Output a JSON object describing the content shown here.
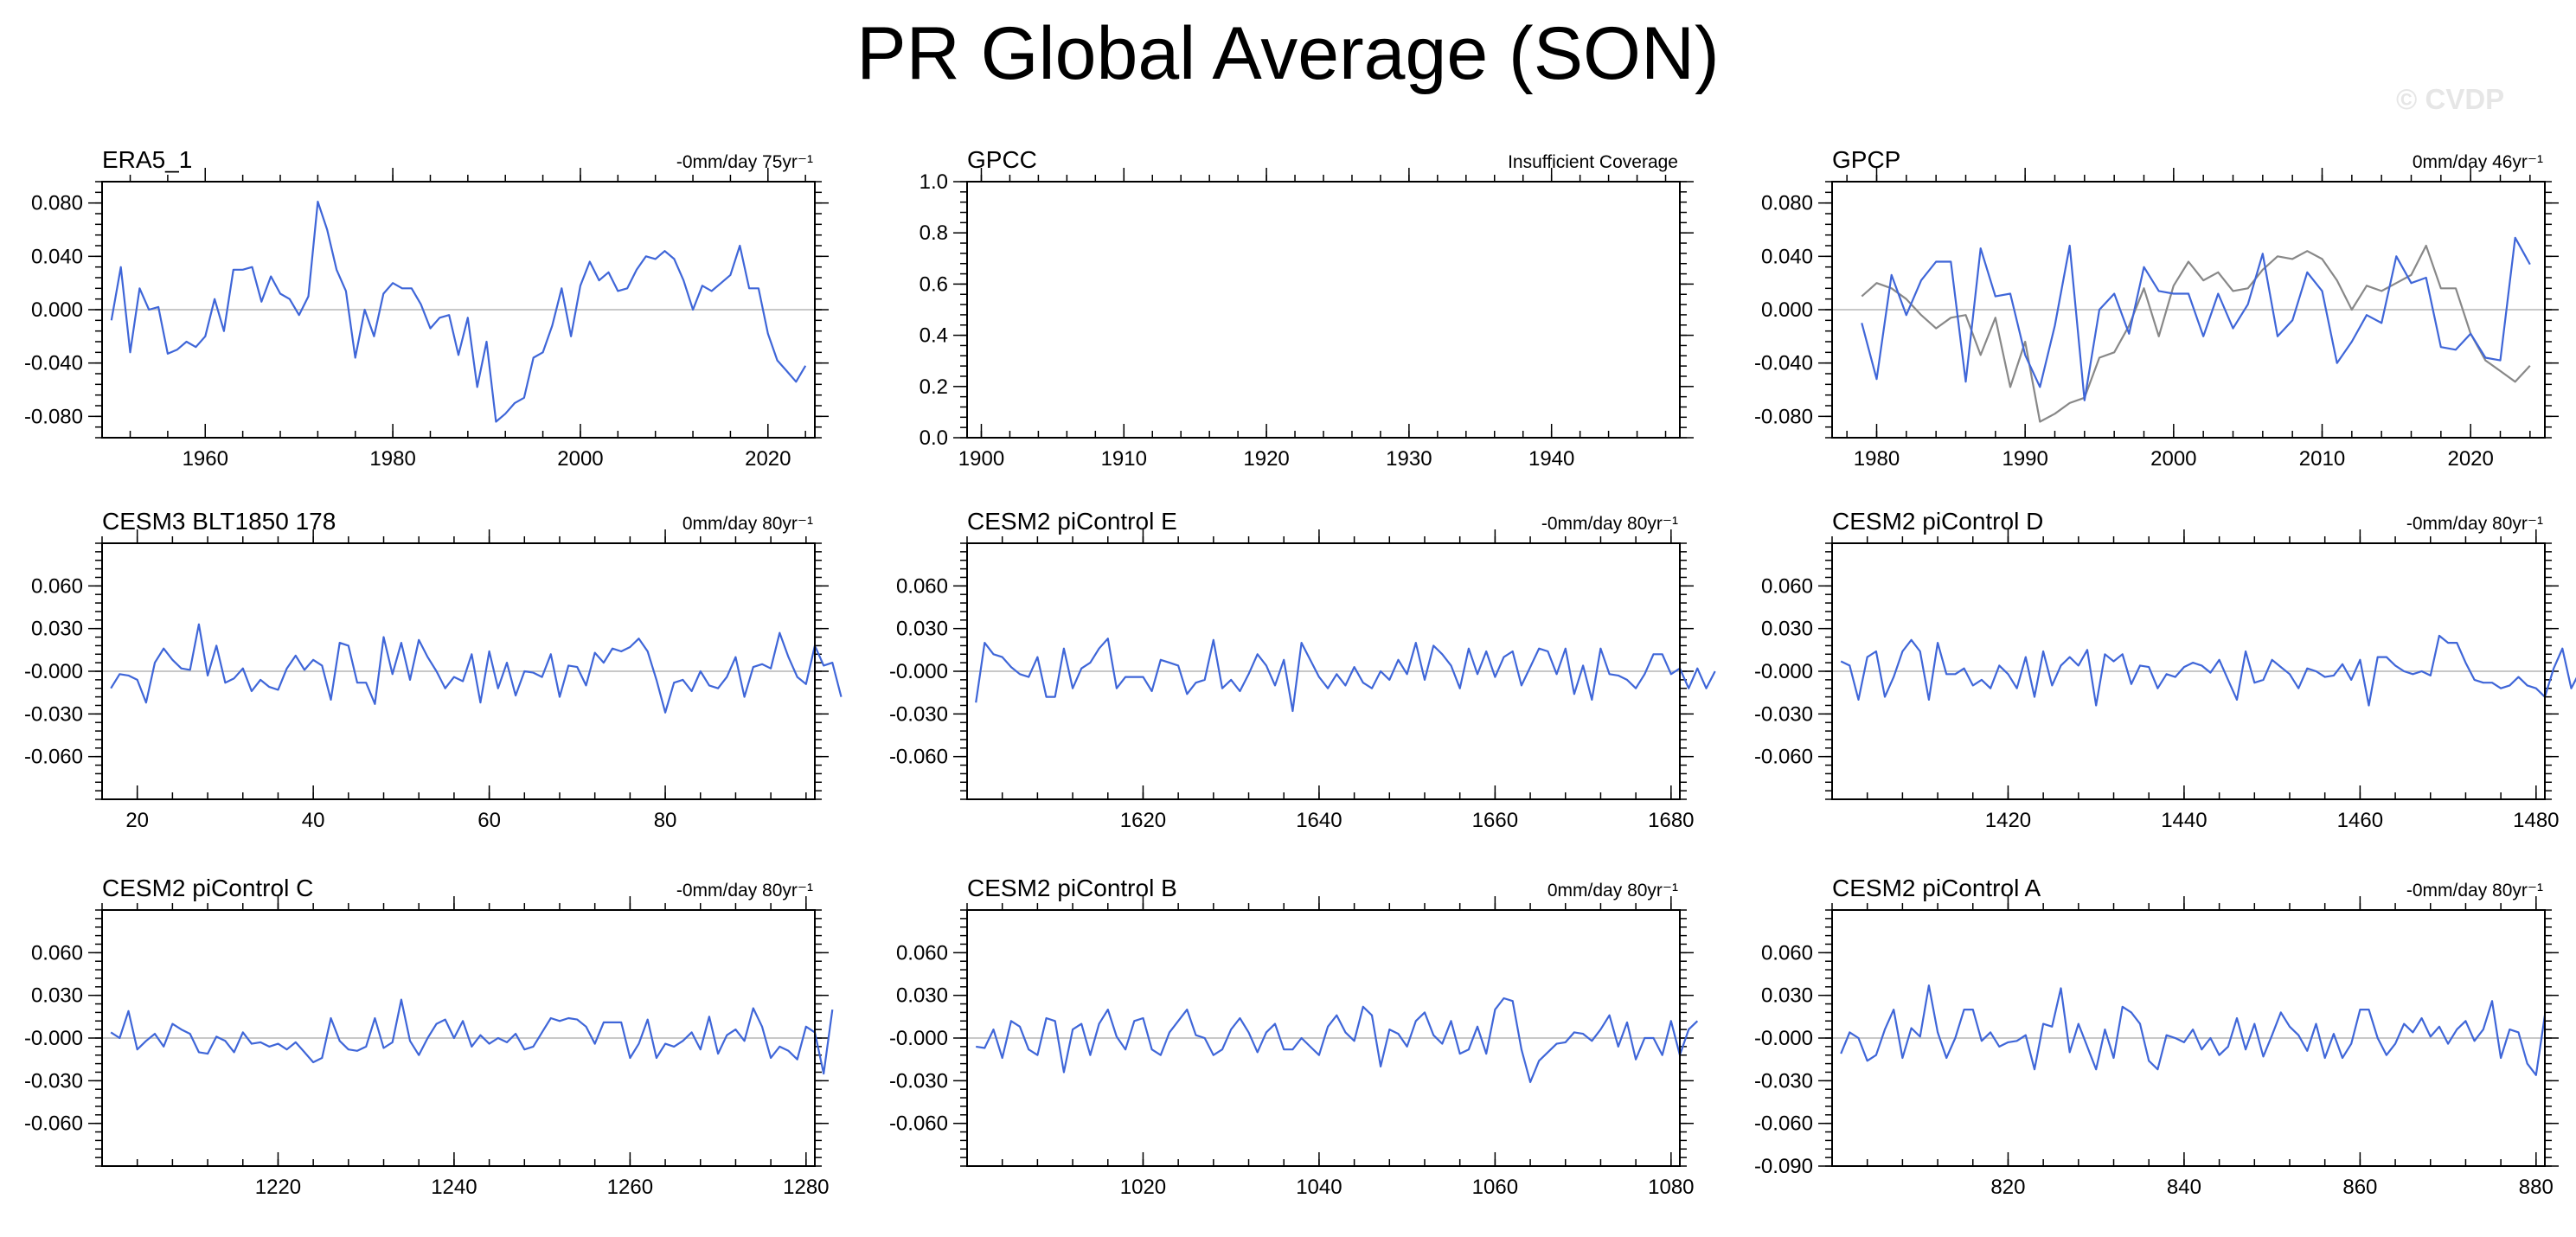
{
  "title": "PR Global Average (SON)",
  "watermark": "© CVDP",
  "style": {
    "model_line": "#3f66d8",
    "obs_line": "#888888",
    "zero_line": "#c8c8c8"
  },
  "chart_data": [
    {
      "type": "line",
      "title": "ERA5_1",
      "annotation": "-0mm/day 75yr⁻¹",
      "xlim": [
        1949,
        2025
      ],
      "ylim": [
        -0.096,
        0.096
      ],
      "xticks": [
        1960,
        1980,
        2000,
        2020
      ],
      "yticks": [
        -0.08,
        -0.04,
        0.0,
        0.04,
        0.08
      ],
      "ytick_labels": [
        "-0.080",
        "-0.040",
        "0.000",
        "0.040",
        "0.080"
      ],
      "series": [
        {
          "x_start": 1950,
          "values": [
            -0.008,
            0.032,
            -0.032,
            0.016,
            0.0,
            0.002,
            -0.033,
            -0.03,
            -0.024,
            -0.028,
            -0.02,
            0.008,
            -0.016,
            0.03,
            0.03,
            0.032,
            0.006,
            0.025,
            0.012,
            0.008,
            -0.004,
            0.01,
            0.081,
            0.06,
            0.03,
            0.014,
            -0.036,
            0.0,
            -0.02,
            0.012,
            0.02,
            0.016,
            0.016,
            0.004,
            -0.014,
            -0.006,
            -0.004,
            -0.034,
            -0.006,
            -0.058,
            -0.024,
            -0.084,
            -0.078,
            -0.07,
            -0.066,
            -0.036,
            -0.032,
            -0.012,
            0.016,
            -0.02,
            0.018,
            0.036,
            0.022,
            0.028,
            0.014,
            0.016,
            0.03,
            0.04,
            0.038,
            0.044,
            0.038,
            0.022,
            0.0,
            0.018,
            0.014,
            0.02,
            0.026,
            0.048,
            0.016,
            0.016,
            -0.018,
            -0.038,
            -0.046,
            -0.054,
            -0.042
          ]
        }
      ]
    },
    {
      "type": "line",
      "title": "GPCC",
      "annotation": "Insufficient Coverage",
      "xlim": [
        1899,
        1949
      ],
      "ylim": [
        0,
        1
      ],
      "xticks": [
        1900,
        1910,
        1920,
        1930,
        1940
      ],
      "yticks": [
        0.0,
        0.2,
        0.4,
        0.6,
        0.8,
        1.0
      ],
      "ytick_labels": [
        "0.0",
        "0.2",
        "0.4",
        "0.6",
        "0.8",
        "1.0"
      ],
      "series": []
    },
    {
      "type": "line",
      "title": "GPCP",
      "annotation": "0mm/day 46yr⁻¹",
      "xlim": [
        1977,
        2025
      ],
      "ylim": [
        -0.096,
        0.096
      ],
      "xticks": [
        1980,
        1990,
        2000,
        2010,
        2020
      ],
      "yticks": [
        -0.08,
        -0.04,
        0.0,
        0.04,
        0.08
      ],
      "ytick_labels": [
        "-0.080",
        "-0.040",
        "0.000",
        "0.040",
        "0.080"
      ],
      "series": [
        {
          "role": "model",
          "x_start": 1979,
          "values": [
            -0.01,
            -0.052,
            0.026,
            -0.004,
            0.022,
            0.036,
            0.036,
            -0.054,
            0.046,
            0.01,
            0.012,
            -0.034,
            -0.058,
            -0.012,
            0.048,
            -0.068,
            0.0,
            0.012,
            -0.018,
            0.032,
            0.014,
            0.012,
            0.012,
            -0.02,
            0.012,
            -0.014,
            0.004,
            0.042,
            -0.02,
            -0.008,
            0.028,
            0.014,
            -0.04,
            -0.024,
            -0.004,
            -0.01,
            0.04,
            0.02,
            0.024,
            -0.028,
            -0.03,
            -0.018,
            -0.036,
            -0.038,
            0.054,
            0.034
          ]
        },
        {
          "role": "observed",
          "x_start": 1979,
          "values": [
            0.01,
            0.02,
            0.016,
            0.008,
            -0.004,
            -0.014,
            -0.006,
            -0.004,
            -0.034,
            -0.006,
            -0.058,
            -0.024,
            -0.084,
            -0.078,
            -0.07,
            -0.066,
            -0.036,
            -0.032,
            -0.012,
            0.016,
            -0.02,
            0.018,
            0.036,
            0.022,
            0.028,
            0.014,
            0.016,
            0.03,
            0.04,
            0.038,
            0.044,
            0.038,
            0.022,
            0.0,
            0.018,
            0.014,
            0.02,
            0.026,
            0.048,
            0.016,
            0.016,
            -0.018,
            -0.038,
            -0.046,
            -0.054,
            -0.042
          ]
        }
      ]
    },
    {
      "type": "line",
      "title": "CESM3 BLT1850 178",
      "annotation": "0mm/day 80yr⁻¹",
      "xlim": [
        16,
        97
      ],
      "ylim": [
        -0.09,
        0.09
      ],
      "xticks": [
        20,
        40,
        60,
        80
      ],
      "yticks": [
        -0.06,
        -0.03,
        0.0,
        0.03,
        0.06
      ],
      "ytick_labels": [
        "-0.060",
        "-0.030",
        "-0.000",
        "0.030",
        "0.060"
      ],
      "series": [
        {
          "x_start": 17,
          "values": [
            -0.012,
            -0.002,
            -0.003,
            -0.006,
            -0.022,
            0.006,
            0.016,
            0.008,
            0.002,
            0.001,
            0.033,
            -0.003,
            0.018,
            -0.008,
            -0.005,
            0.002,
            -0.014,
            -0.006,
            -0.011,
            -0.013,
            0.002,
            0.011,
            0.001,
            0.008,
            0.004,
            -0.02,
            0.02,
            0.018,
            -0.008,
            -0.008,
            -0.023,
            0.024,
            -0.002,
            0.02,
            -0.006,
            0.022,
            0.01,
            0.0,
            -0.012,
            -0.004,
            -0.007,
            0.012,
            -0.022,
            0.014,
            -0.012,
            0.006,
            -0.017,
            0.0,
            -0.001,
            -0.004,
            0.012,
            -0.018,
            0.004,
            0.003,
            -0.01,
            0.013,
            0.006,
            0.016,
            0.014,
            0.017,
            0.023,
            0.014,
            -0.006,
            -0.029,
            -0.008,
            -0.006,
            -0.014,
            0.0,
            -0.01,
            -0.012,
            -0.004,
            0.01,
            -0.018,
            0.003,
            0.005,
            0.002,
            0.027,
            0.01,
            -0.004,
            -0.009,
            0.018,
            0.004,
            0.006,
            -0.018
          ]
        }
      ]
    },
    {
      "type": "line",
      "title": "CESM2 piControl E",
      "annotation": "-0mm/day 80yr⁻¹",
      "xlim": [
        1600,
        1681
      ],
      "ylim": [
        -0.09,
        0.09
      ],
      "xticks": [
        1620,
        1640,
        1660,
        1680
      ],
      "yticks": [
        -0.06,
        -0.03,
        0.0,
        0.03,
        0.06
      ],
      "ytick_labels": [
        "-0.060",
        "-0.030",
        "-0.000",
        "0.030",
        "0.060"
      ],
      "series": [
        {
          "x_start": 1601,
          "values": [
            -0.022,
            0.02,
            0.012,
            0.01,
            0.003,
            -0.002,
            -0.004,
            0.01,
            -0.018,
            -0.018,
            0.016,
            -0.012,
            0.002,
            0.006,
            0.016,
            0.023,
            -0.012,
            -0.004,
            -0.004,
            -0.004,
            -0.014,
            0.008,
            0.006,
            0.004,
            -0.016,
            -0.008,
            -0.006,
            0.022,
            -0.012,
            -0.006,
            -0.014,
            -0.002,
            0.012,
            0.004,
            -0.01,
            0.008,
            -0.028,
            0.02,
            0.008,
            -0.004,
            -0.012,
            -0.002,
            -0.01,
            0.003,
            -0.008,
            -0.012,
            0.0,
            -0.006,
            0.008,
            -0.002,
            0.02,
            -0.006,
            0.018,
            0.012,
            0.004,
            -0.012,
            0.016,
            -0.002,
            0.014,
            -0.004,
            0.01,
            0.014,
            -0.01,
            0.003,
            0.016,
            0.014,
            -0.002,
            0.016,
            -0.016,
            0.004,
            -0.02,
            0.016,
            -0.002,
            -0.003,
            -0.006,
            -0.012,
            -0.002,
            0.012,
            0.012,
            -0.002,
            0.002,
            -0.012,
            0.002,
            -0.012,
            0.0
          ]
        }
      ]
    },
    {
      "type": "line",
      "title": "CESM2 piControl D",
      "annotation": "-0mm/day 80yr⁻¹",
      "xlim": [
        1400,
        1481
      ],
      "ylim": [
        -0.09,
        0.09
      ],
      "xticks": [
        1420,
        1440,
        1460,
        1480
      ],
      "yticks": [
        -0.06,
        -0.03,
        0.0,
        0.03,
        0.06
      ],
      "ytick_labels": [
        "-0.060",
        "-0.030",
        "-0.000",
        "0.030",
        "0.060"
      ],
      "series": [
        {
          "x_start": 1401,
          "values": [
            0.007,
            0.004,
            -0.02,
            0.01,
            0.014,
            -0.018,
            -0.004,
            0.014,
            0.022,
            0.014,
            -0.02,
            0.02,
            -0.002,
            -0.002,
            0.002,
            -0.01,
            -0.006,
            -0.012,
            0.004,
            -0.002,
            -0.012,
            0.01,
            -0.018,
            0.014,
            -0.01,
            0.004,
            0.01,
            0.004,
            0.015,
            -0.024,
            0.012,
            0.007,
            0.012,
            -0.009,
            0.004,
            0.003,
            -0.012,
            -0.002,
            -0.004,
            0.003,
            0.006,
            0.004,
            -0.001,
            0.008,
            -0.006,
            -0.02,
            0.014,
            -0.008,
            -0.006,
            0.008,
            0.003,
            -0.002,
            -0.012,
            0.002,
            0.0,
            -0.004,
            -0.003,
            0.005,
            -0.006,
            0.008,
            -0.024,
            0.01,
            0.01,
            0.004,
            0.0,
            -0.002,
            0.0,
            -0.003,
            0.025,
            0.02,
            0.02,
            0.006,
            -0.006,
            -0.008,
            -0.008,
            -0.012,
            -0.01,
            -0.004,
            -0.01,
            -0.012,
            -0.018,
            0.002,
            0.016,
            -0.012,
            0.0
          ]
        }
      ]
    },
    {
      "type": "line",
      "title": "CESM2 piControl C",
      "annotation": "-0mm/day 80yr⁻¹",
      "xlim": [
        1200,
        1281
      ],
      "ylim": [
        -0.09,
        0.09
      ],
      "xticks": [
        1220,
        1240,
        1260,
        1280
      ],
      "yticks": [
        -0.06,
        -0.03,
        0.0,
        0.03,
        0.06
      ],
      "ytick_labels": [
        "-0.060",
        "-0.030",
        "-0.000",
        "0.030",
        "0.060"
      ],
      "series": [
        {
          "x_start": 1201,
          "values": [
            0.004,
            0.0,
            0.019,
            -0.008,
            -0.002,
            0.003,
            -0.006,
            0.01,
            0.006,
            0.003,
            -0.01,
            -0.011,
            0.001,
            -0.002,
            -0.01,
            0.004,
            -0.004,
            -0.003,
            -0.006,
            -0.004,
            -0.008,
            -0.003,
            -0.01,
            -0.017,
            -0.014,
            0.014,
            -0.002,
            -0.008,
            -0.009,
            -0.006,
            0.014,
            -0.007,
            -0.003,
            0.027,
            -0.002,
            -0.012,
            0.0,
            0.01,
            0.013,
            0.0,
            0.012,
            -0.006,
            0.002,
            -0.004,
            0.0,
            -0.003,
            0.003,
            -0.008,
            -0.006,
            0.004,
            0.014,
            0.012,
            0.014,
            0.013,
            0.008,
            -0.004,
            0.011,
            0.011,
            0.011,
            -0.014,
            -0.004,
            0.013,
            -0.014,
            -0.004,
            -0.006,
            -0.002,
            0.004,
            -0.008,
            0.015,
            -0.011,
            0.002,
            0.006,
            -0.002,
            0.021,
            0.008,
            -0.014,
            -0.006,
            -0.009,
            -0.015,
            0.008,
            0.004,
            -0.025,
            0.02
          ]
        }
      ]
    },
    {
      "type": "line",
      "title": "CESM2 piControl B",
      "annotation": "0mm/day 80yr⁻¹",
      "xlim": [
        1000,
        1081
      ],
      "ylim": [
        -0.09,
        0.09
      ],
      "xticks": [
        1020,
        1040,
        1060,
        1080
      ],
      "yticks": [
        -0.06,
        -0.03,
        0.0,
        0.03,
        0.06
      ],
      "ytick_labels": [
        "-0.060",
        "-0.030",
        "-0.000",
        "0.030",
        "0.060"
      ],
      "series": [
        {
          "x_start": 1001,
          "values": [
            -0.006,
            -0.007,
            0.006,
            -0.014,
            0.012,
            0.008,
            -0.008,
            -0.012,
            0.014,
            0.012,
            -0.024,
            0.006,
            0.01,
            -0.012,
            0.01,
            0.02,
            0.001,
            -0.008,
            0.012,
            0.014,
            -0.008,
            -0.012,
            0.004,
            0.012,
            0.02,
            0.002,
            0.0,
            -0.012,
            -0.008,
            0.006,
            0.014,
            0.004,
            -0.01,
            0.004,
            0.01,
            -0.008,
            -0.008,
            0.0,
            -0.006,
            -0.012,
            0.008,
            0.016,
            0.004,
            -0.002,
            0.022,
            0.016,
            -0.02,
            0.006,
            0.003,
            -0.006,
            0.012,
            0.018,
            0.002,
            -0.004,
            0.012,
            -0.011,
            -0.008,
            0.008,
            -0.011,
            0.02,
            0.028,
            0.026,
            -0.008,
            -0.031,
            -0.016,
            -0.01,
            -0.004,
            -0.003,
            0.004,
            0.003,
            -0.002,
            0.006,
            0.016,
            -0.006,
            0.011,
            -0.015,
            0.0,
            0.0,
            -0.012,
            0.012,
            -0.012,
            0.006,
            0.012
          ]
        }
      ]
    },
    {
      "type": "line",
      "title": "CESM2 piControl A",
      "annotation": "-0mm/day 80yr⁻¹",
      "xlim": [
        800,
        881
      ],
      "ylim": [
        -0.09,
        0.09
      ],
      "xticks": [
        820,
        840,
        860,
        880
      ],
      "yticks": [
        -0.09,
        -0.06,
        -0.03,
        0.0,
        0.03,
        0.06
      ],
      "ytick_labels": [
        "-0.090",
        "-0.060",
        "-0.030",
        "-0.000",
        "0.030",
        "0.060"
      ],
      "series": [
        {
          "x_start": 801,
          "values": [
            -0.011,
            0.004,
            0.0,
            -0.016,
            -0.012,
            0.006,
            0.02,
            -0.014,
            0.007,
            0.001,
            0.037,
            0.004,
            -0.014,
            0.0,
            0.02,
            0.02,
            -0.002,
            0.004,
            -0.006,
            -0.003,
            -0.002,
            0.002,
            -0.022,
            0.01,
            0.008,
            0.035,
            -0.01,
            0.01,
            -0.006,
            -0.022,
            0.006,
            -0.014,
            0.022,
            0.018,
            0.01,
            -0.016,
            -0.022,
            0.002,
            0.0,
            -0.003,
            0.006,
            -0.008,
            0.0,
            -0.012,
            -0.006,
            0.014,
            -0.008,
            0.01,
            -0.013,
            0.002,
            0.018,
            0.008,
            0.002,
            -0.009,
            0.01,
            -0.014,
            0.003,
            -0.014,
            -0.004,
            0.02,
            0.02,
            0.0,
            -0.012,
            -0.004,
            0.01,
            0.004,
            0.014,
            0.001,
            0.008,
            -0.004,
            0.006,
            0.012,
            -0.002,
            0.006,
            0.026,
            -0.014,
            0.006,
            0.004,
            -0.018,
            -0.026,
            0.016
          ]
        }
      ]
    }
  ]
}
